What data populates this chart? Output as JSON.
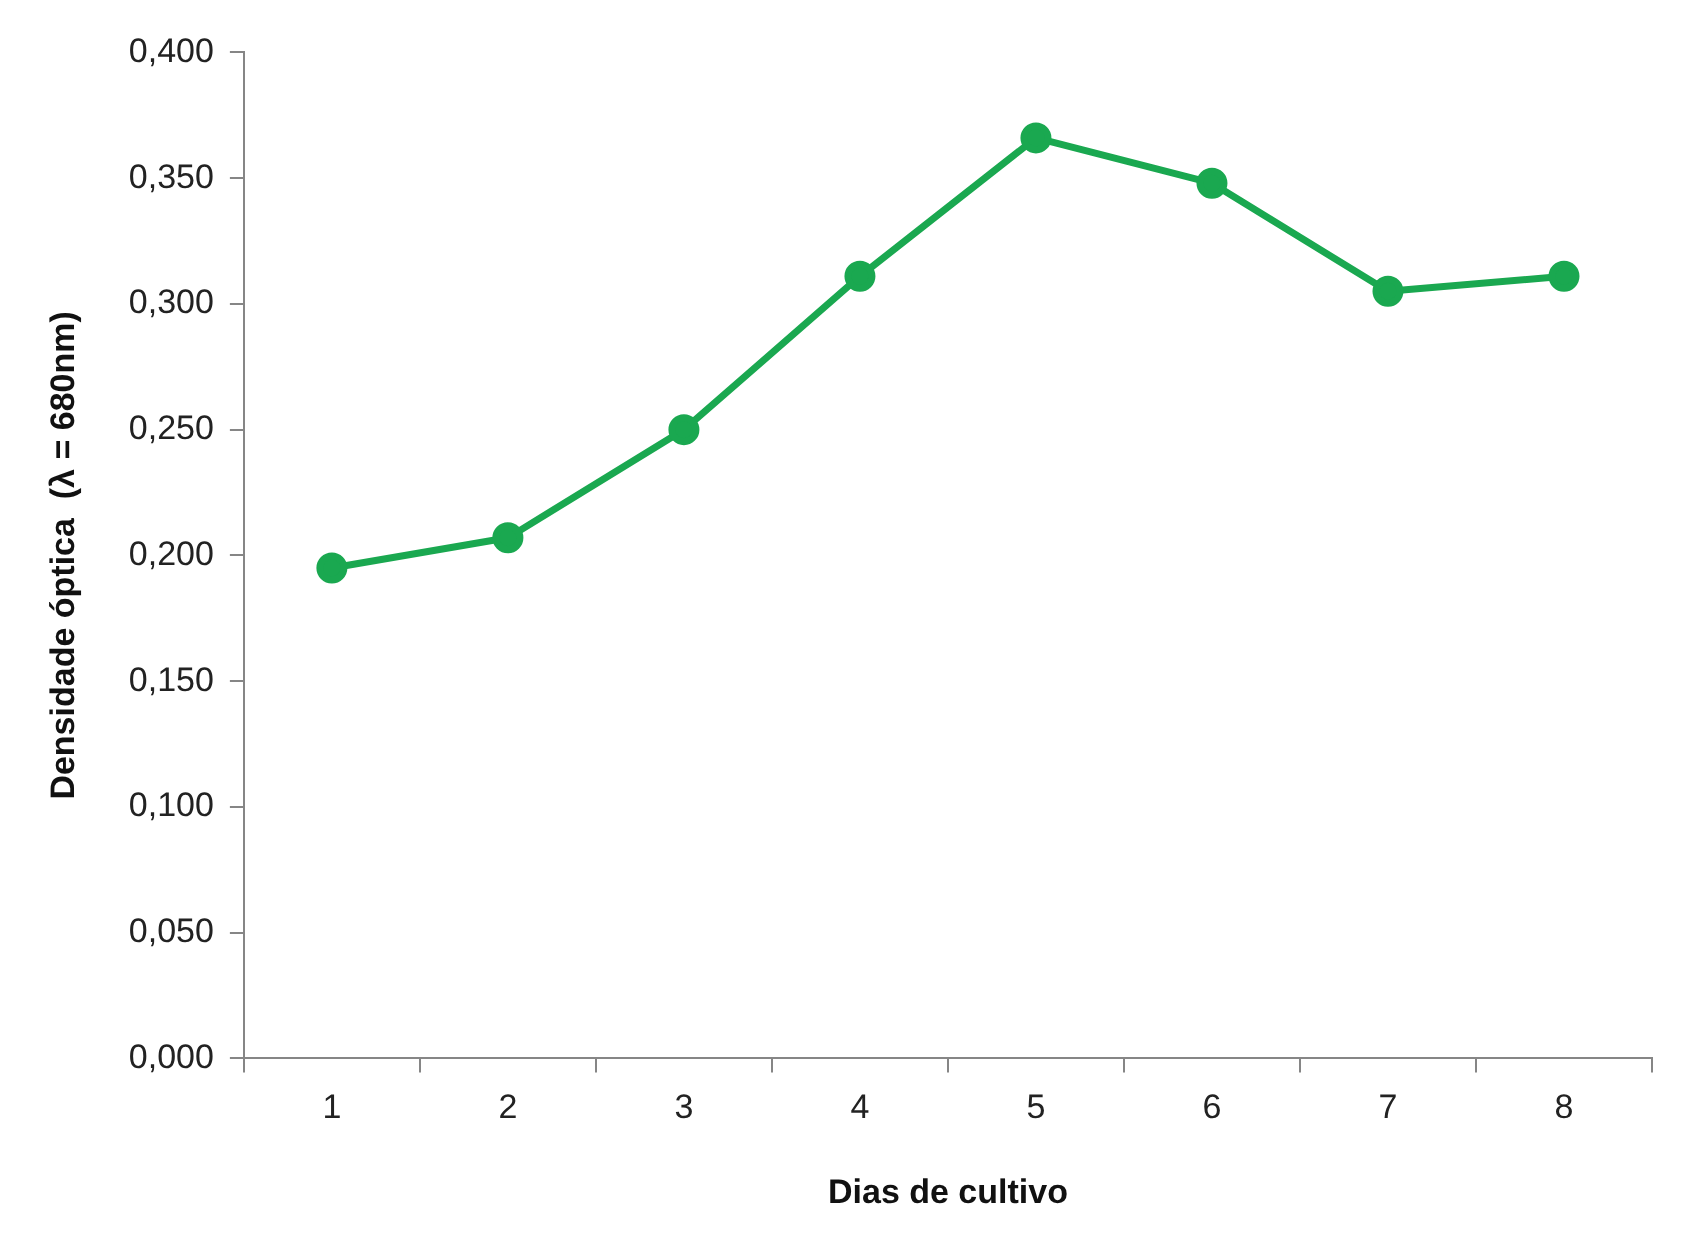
{
  "chart_data": {
    "type": "line",
    "xlabel": "Dias de cultivo",
    "ylabel": "Densidade óptica  (λ = 680nm)",
    "categories": [
      "1",
      "2",
      "3",
      "4",
      "5",
      "6",
      "7",
      "8"
    ],
    "series": [
      {
        "color": "#1aa850",
        "values": [
          0.195,
          0.207,
          0.25,
          0.311,
          0.366,
          0.348,
          0.305,
          0.311
        ]
      }
    ],
    "ylim": [
      0,
      0.4
    ],
    "yticks": [
      {
        "value": 0,
        "label": "0,000"
      },
      {
        "value": 0.05,
        "label": "0,050"
      },
      {
        "value": 0.1,
        "label": "0,100"
      },
      {
        "value": 0.15,
        "label": "0,150"
      },
      {
        "value": 0.2,
        "label": "0,200"
      },
      {
        "value": 0.25,
        "label": "0,250"
      },
      {
        "value": 0.3,
        "label": "0,300"
      },
      {
        "value": 0.35,
        "label": "0,350"
      },
      {
        "value": 0.4,
        "label": "0,400"
      }
    ],
    "grid": false,
    "legend": false,
    "marker": "circle",
    "line_style": "solid"
  }
}
